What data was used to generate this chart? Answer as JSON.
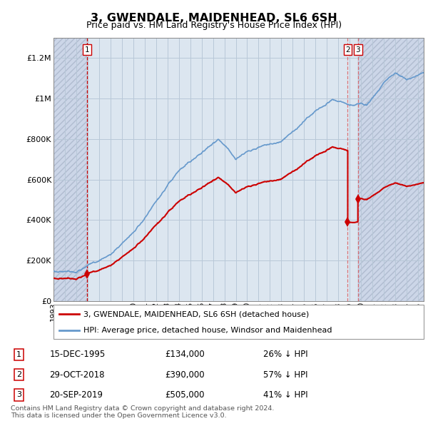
{
  "title": "3, GWENDALE, MAIDENHEAD, SL6 6SH",
  "subtitle": "Price paid vs. HM Land Registry's House Price Index (HPI)",
  "legend_line1": "3, GWENDALE, MAIDENHEAD, SL6 6SH (detached house)",
  "legend_line2": "HPI: Average price, detached house, Windsor and Maidenhead",
  "footer1": "Contains HM Land Registry data © Crown copyright and database right 2024.",
  "footer2": "This data is licensed under the Open Government Licence v3.0.",
  "sales": [
    {
      "label": "1",
      "date": "15-DEC-1995",
      "price": 134000,
      "pct": "26% ↓ HPI"
    },
    {
      "label": "2",
      "date": "29-OCT-2018",
      "price": 390000,
      "pct": "57% ↓ HPI"
    },
    {
      "label": "3",
      "date": "20-SEP-2019",
      "price": 505000,
      "pct": "41% ↓ HPI"
    }
  ],
  "sale_years": [
    1995.96,
    2018.83,
    2019.72
  ],
  "sale_prices": [
    134000,
    390000,
    505000
  ],
  "hpi_color": "#6699cc",
  "price_color": "#cc0000",
  "dot_color": "#cc0000",
  "ylim": [
    0,
    1300000
  ],
  "xlim_start": 1993.0,
  "xlim_end": 2025.5,
  "bg_hatch_color": "#ccd6e8",
  "bg_solid_color": "#dce6f0",
  "grid_color": "#b8c8d8",
  "vline1_color": "#cc0000",
  "vline2_color": "#dd6666",
  "vline3_color": "#dd6666"
}
